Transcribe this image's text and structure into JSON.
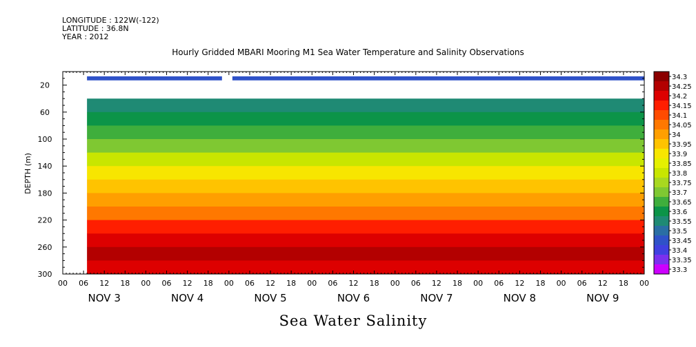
{
  "header": {
    "longitude": "LONGITUDE : 122W(-122)",
    "latitude": "LATITUDE : 36.8N",
    "year": "YEAR : 2012"
  },
  "chart_data": {
    "type": "heatmap",
    "title": "Hourly Gridded MBARI Mooring M1 Sea Water Temperature and Salinity Observations",
    "xlabel": "",
    "ylabel": "DEPTH (m)",
    "bottom_title": "Sea Water Salinity",
    "ylim": [
      300,
      0
    ],
    "y_ticks": [
      20,
      60,
      100,
      140,
      180,
      220,
      260,
      300
    ],
    "x_hour_ticks": [
      "00",
      "06",
      "12",
      "18",
      "00",
      "06",
      "12",
      "18",
      "00",
      "06",
      "12",
      "18",
      "00",
      "06",
      "12",
      "18",
      "00",
      "06",
      "12",
      "18",
      "00",
      "06",
      "12",
      "18",
      "00",
      "06",
      "12",
      "18",
      "00"
    ],
    "x_day_labels": [
      "NOV 3",
      "NOV 4",
      "NOV 5",
      "NOV 6",
      "NOV 7",
      "NOV 8",
      "NOV 9"
    ],
    "x_range_hours": [
      0,
      168
    ],
    "data_start_hour": 7,
    "surface_gap_hours": [
      46,
      49
    ],
    "colorbar": {
      "levels": [
        "34.3",
        "34.25",
        "34.2",
        "34.15",
        "34.1",
        "34.05",
        "34",
        "33.95",
        "33.9",
        "33.85",
        "33.8",
        "33.75",
        "33.7",
        "33.65",
        "33.6",
        "33.55",
        "33.5",
        "33.45",
        "33.4",
        "33.35",
        "33.3"
      ],
      "colors": [
        "#8b0000",
        "#b30000",
        "#dd0000",
        "#ff1e00",
        "#ff4b00",
        "#ff7800",
        "#ff9f00",
        "#ffc300",
        "#f7e600",
        "#e5f000",
        "#c8e600",
        "#a8d820",
        "#7fc832",
        "#3fae3c",
        "#0c9448",
        "#1f8a74",
        "#2a6ea4",
        "#2f52c8",
        "#4040e0",
        "#7a30ee",
        "#cc00ff"
      ]
    },
    "layers": [
      {
        "depth": 10,
        "salinity": 33.45
      },
      {
        "depth": 40,
        "salinity": 33.55
      },
      {
        "depth": 60,
        "salinity": 33.6
      },
      {
        "depth": 80,
        "salinity": 33.65
      },
      {
        "depth": 100,
        "salinity": 33.7
      },
      {
        "depth": 120,
        "salinity": 33.8
      },
      {
        "depth": 140,
        "salinity": 33.9
      },
      {
        "depth": 160,
        "salinity": 33.95
      },
      {
        "depth": 180,
        "salinity": 34.0
      },
      {
        "depth": 200,
        "salinity": 34.05
      },
      {
        "depth": 220,
        "salinity": 34.15
      },
      {
        "depth": 240,
        "salinity": 34.2
      },
      {
        "depth": 260,
        "salinity": 34.25
      },
      {
        "depth": 280,
        "salinity": 34.2
      },
      {
        "depth": 300,
        "salinity": 34.2
      }
    ]
  }
}
